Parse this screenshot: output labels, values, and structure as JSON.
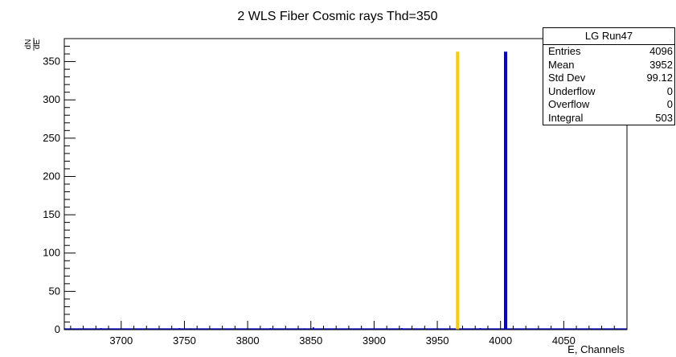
{
  "chart_data": {
    "type": "histogram",
    "title": "2 WLS Fiber Cosmic rays Thd=350",
    "xlabel": "E, Channels",
    "ylabel": "dN/dE",
    "ylabel_num": "dN",
    "ylabel_den": "dE",
    "xlim": [
      3655,
      4100
    ],
    "ylim": [
      0,
      380
    ],
    "x_ticks": [
      3700,
      3750,
      3800,
      3850,
      3900,
      3950,
      4000,
      4050
    ],
    "y_ticks": [
      0,
      50,
      100,
      150,
      200,
      250,
      300,
      350
    ],
    "x_tick_labels": [
      "3700",
      "3750",
      "3800",
      "3850",
      "3900",
      "3950",
      "4000",
      "4050"
    ],
    "y_tick_labels": [
      "0",
      "50",
      "100",
      "150",
      "200",
      "250",
      "300",
      "350"
    ],
    "series": [
      {
        "color": "#ffcc00",
        "peaks": [
          {
            "x": 3966,
            "y": 363
          }
        ],
        "baseline_noise": [
          {
            "x": 3660,
            "y": 1
          },
          {
            "x": 3668,
            "y": 2
          },
          {
            "x": 3678,
            "y": 1
          },
          {
            "x": 3690,
            "y": 2
          },
          {
            "x": 3705,
            "y": 1
          },
          {
            "x": 3720,
            "y": 2
          },
          {
            "x": 3738,
            "y": 1
          },
          {
            "x": 3755,
            "y": 2
          },
          {
            "x": 3772,
            "y": 1
          },
          {
            "x": 3790,
            "y": 2
          },
          {
            "x": 3808,
            "y": 1
          },
          {
            "x": 3826,
            "y": 1
          },
          {
            "x": 3845,
            "y": 2
          },
          {
            "x": 3862,
            "y": 1
          },
          {
            "x": 3880,
            "y": 2
          },
          {
            "x": 3898,
            "y": 1
          },
          {
            "x": 3915,
            "y": 1
          },
          {
            "x": 3932,
            "y": 2
          },
          {
            "x": 3950,
            "y": 1
          }
        ]
      },
      {
        "color": "#0000ee",
        "peaks": [
          {
            "x": 4004,
            "y": 363
          }
        ],
        "baseline_noise": [
          {
            "x": 3664,
            "y": 1
          },
          {
            "x": 3684,
            "y": 2
          },
          {
            "x": 3712,
            "y": 1
          },
          {
            "x": 3746,
            "y": 2
          },
          {
            "x": 3780,
            "y": 1
          },
          {
            "x": 3818,
            "y": 2
          },
          {
            "x": 3852,
            "y": 3
          },
          {
            "x": 3888,
            "y": 1
          },
          {
            "x": 3922,
            "y": 2
          },
          {
            "x": 3958,
            "y": 1
          },
          {
            "x": 3984,
            "y": 2
          },
          {
            "x": 3995,
            "y": 1
          }
        ]
      }
    ],
    "colors": {
      "frame": "#000000",
      "background": "#ffffff"
    }
  },
  "stats": {
    "title": "LG Run47",
    "rows": [
      {
        "label": "Entries",
        "value": "4096"
      },
      {
        "label": "Mean",
        "value": "3952"
      },
      {
        "label": "Std Dev",
        "value": "99.12"
      },
      {
        "label": "Underflow",
        "value": "0"
      },
      {
        "label": "Overflow",
        "value": "0"
      },
      {
        "label": "Integral",
        "value": "503"
      }
    ]
  }
}
